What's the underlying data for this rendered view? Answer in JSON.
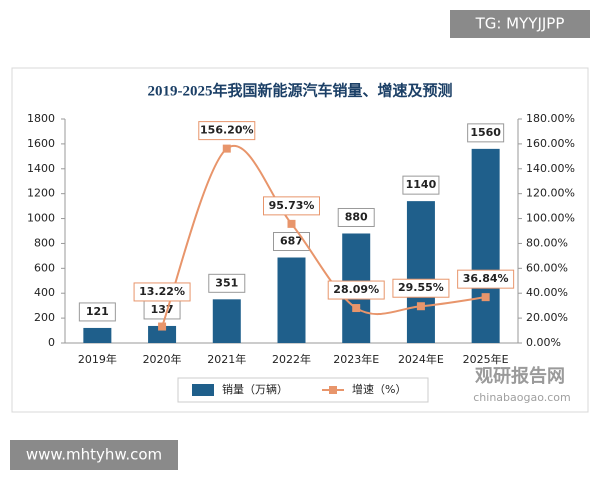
{
  "chart_data": {
    "type": "bar",
    "title": "2019-2025年我国新能源汽车销量、增速及预测",
    "categories": [
      "2019年",
      "2020年",
      "2021年",
      "2022年",
      "2023年E",
      "2024年E",
      "2025年E"
    ],
    "series": [
      {
        "name": "销量（万辆）",
        "color": "#1f5f8b",
        "values": [
          121,
          137,
          351,
          687,
          880,
          1140,
          1560
        ]
      },
      {
        "name": "增速（%）",
        "color": "#e8956b",
        "type": "line",
        "axis": "y2",
        "values": [
          null,
          13.22,
          156.2,
          95.73,
          28.09,
          29.55,
          36.84
        ],
        "value_labels": [
          null,
          "13.22%",
          "156.20%",
          "95.73%",
          "28.09%",
          "29.55%",
          "36.84%"
        ]
      }
    ],
    "ylim": [
      0,
      1800
    ],
    "yticks": [
      0,
      200,
      400,
      600,
      800,
      1000,
      1200,
      1400,
      1600,
      1800
    ],
    "y2lim": [
      0,
      180
    ],
    "y2ticks": [
      {
        "value": 0,
        "label": "0.00%"
      },
      {
        "value": 20,
        "label": "20.00%"
      },
      {
        "value": 40,
        "label": "40.00%"
      },
      {
        "value": 60,
        "label": "60.00%"
      },
      {
        "value": 80,
        "label": "80.00%"
      },
      {
        "value": 100,
        "label": "100.00%"
      },
      {
        "value": 120,
        "label": "120.00%"
      },
      {
        "value": 140,
        "label": "140.00%"
      },
      {
        "value": 160,
        "label": "160.00%"
      },
      {
        "value": 180,
        "label": "180.00%"
      }
    ],
    "grid": false,
    "legend": "bottom"
  },
  "watermarks": {
    "top": "TG: MYYJJPP",
    "bottom": "www.mhtyhw.com",
    "brand": "观研报告网",
    "site": "chinabaogao.com"
  }
}
